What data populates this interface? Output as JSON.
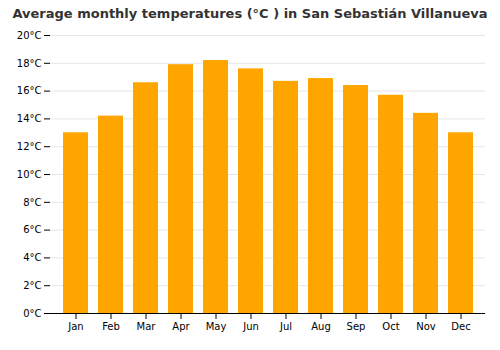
{
  "chart_data": {
    "type": "bar",
    "title": "Average monthly temperatures (°C ) in San Sebastián Villanueva",
    "categories": [
      "Jan",
      "Feb",
      "Mar",
      "Apr",
      "May",
      "Jun",
      "Jul",
      "Aug",
      "Sep",
      "Oct",
      "Nov",
      "Dec"
    ],
    "values": [
      13.0,
      14.2,
      16.6,
      17.9,
      18.2,
      17.6,
      16.7,
      16.9,
      16.4,
      15.7,
      14.4,
      13.0
    ],
    "color": "#FFA500",
    "ylim": [
      0,
      20
    ],
    "yticks": [
      {
        "value": 0,
        "label": "0°C"
      },
      {
        "value": 2,
        "label": "2°C"
      },
      {
        "value": 4,
        "label": "4°C"
      },
      {
        "value": 6,
        "label": "6°C"
      },
      {
        "value": 8,
        "label": "8°C"
      },
      {
        "value": 10,
        "label": "10°C"
      },
      {
        "value": 12,
        "label": "12°C"
      },
      {
        "value": 14,
        "label": "14°C"
      },
      {
        "value": 16,
        "label": "16°C"
      },
      {
        "value": 18,
        "label": "18°C"
      },
      {
        "value": 20,
        "label": "20°C"
      }
    ],
    "grid": true
  }
}
